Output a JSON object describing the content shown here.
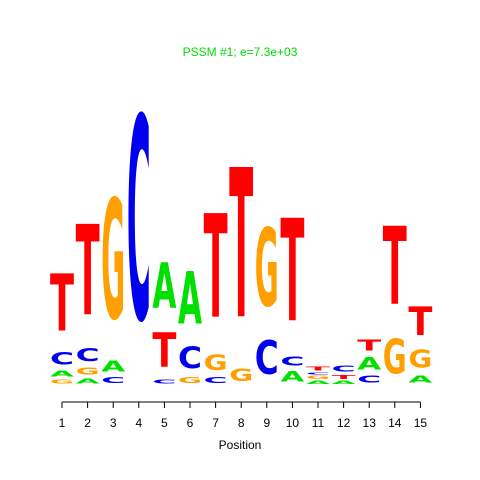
{
  "chart_data": {
    "type": "logo",
    "title": "PSSM #1; e=7.3e+03",
    "x_label": "Position",
    "x": [
      1,
      2,
      3,
      4,
      5,
      6,
      7,
      8,
      9,
      10,
      11,
      12,
      13,
      14,
      15
    ],
    "colors": {
      "A": "#00e000",
      "C": "#0000ee",
      "G": "#ffa000",
      "T": "#ff0000"
    },
    "title_color": "#00dd00",
    "stacks": [
      [
        {
          "letter": "G",
          "value": 0.04
        },
        {
          "letter": "A",
          "value": 0.06
        },
        {
          "letter": "C",
          "value": 0.12
        },
        {
          "letter": "T",
          "value": 0.56
        }
      ],
      [
        {
          "letter": "A",
          "value": 0.05
        },
        {
          "letter": "G",
          "value": 0.07
        },
        {
          "letter": "C",
          "value": 0.13
        },
        {
          "letter": "T",
          "value": 0.89
        }
      ],
      [
        {
          "letter": "C",
          "value": 0.06
        },
        {
          "letter": "A",
          "value": 0.11
        },
        {
          "letter": "G",
          "value": 1.18
        }
      ],
      [
        {
          "letter": "C",
          "value": 2.0
        }
      ],
      [
        {
          "letter": "C",
          "value": 0.04
        },
        {
          "letter": "T",
          "value": 0.34
        },
        {
          "letter": "A",
          "value": 0.45
        }
      ],
      [
        {
          "letter": "G",
          "value": 0.06
        },
        {
          "letter": "C",
          "value": 0.21
        },
        {
          "letter": "A",
          "value": 0.52
        }
      ],
      [
        {
          "letter": "C",
          "value": 0.06
        },
        {
          "letter": "G",
          "value": 0.15
        },
        {
          "letter": "T",
          "value": 1.02
        }
      ],
      [
        {
          "letter": "G",
          "value": 0.12
        },
        {
          "letter": "T",
          "value": 1.47
        }
      ],
      [
        {
          "letter": "C",
          "value": 0.33
        },
        {
          "letter": "G",
          "value": 0.77
        }
      ],
      [
        {
          "letter": "A",
          "value": 0.1
        },
        {
          "letter": "C",
          "value": 0.09
        },
        {
          "letter": "T",
          "value": 1.01
        }
      ],
      [
        {
          "letter": "A",
          "value": 0.03
        },
        {
          "letter": "G",
          "value": 0.03
        },
        {
          "letter": "C",
          "value": 0.02
        },
        {
          "letter": "T",
          "value": 0.04
        }
      ],
      [
        {
          "letter": "A",
          "value": 0.03
        },
        {
          "letter": "T",
          "value": 0.04
        },
        {
          "letter": "C",
          "value": 0.06
        }
      ],
      [
        {
          "letter": "C",
          "value": 0.07
        },
        {
          "letter": "A",
          "value": 0.12
        },
        {
          "letter": "T",
          "value": 0.11
        }
      ],
      [
        {
          "letter": "G",
          "value": 0.34
        },
        {
          "letter": "T",
          "value": 0.77
        }
      ],
      [
        {
          "letter": "A",
          "value": 0.07
        },
        {
          "letter": "G",
          "value": 0.18
        },
        {
          "letter": "T",
          "value": 0.28
        }
      ]
    ]
  }
}
